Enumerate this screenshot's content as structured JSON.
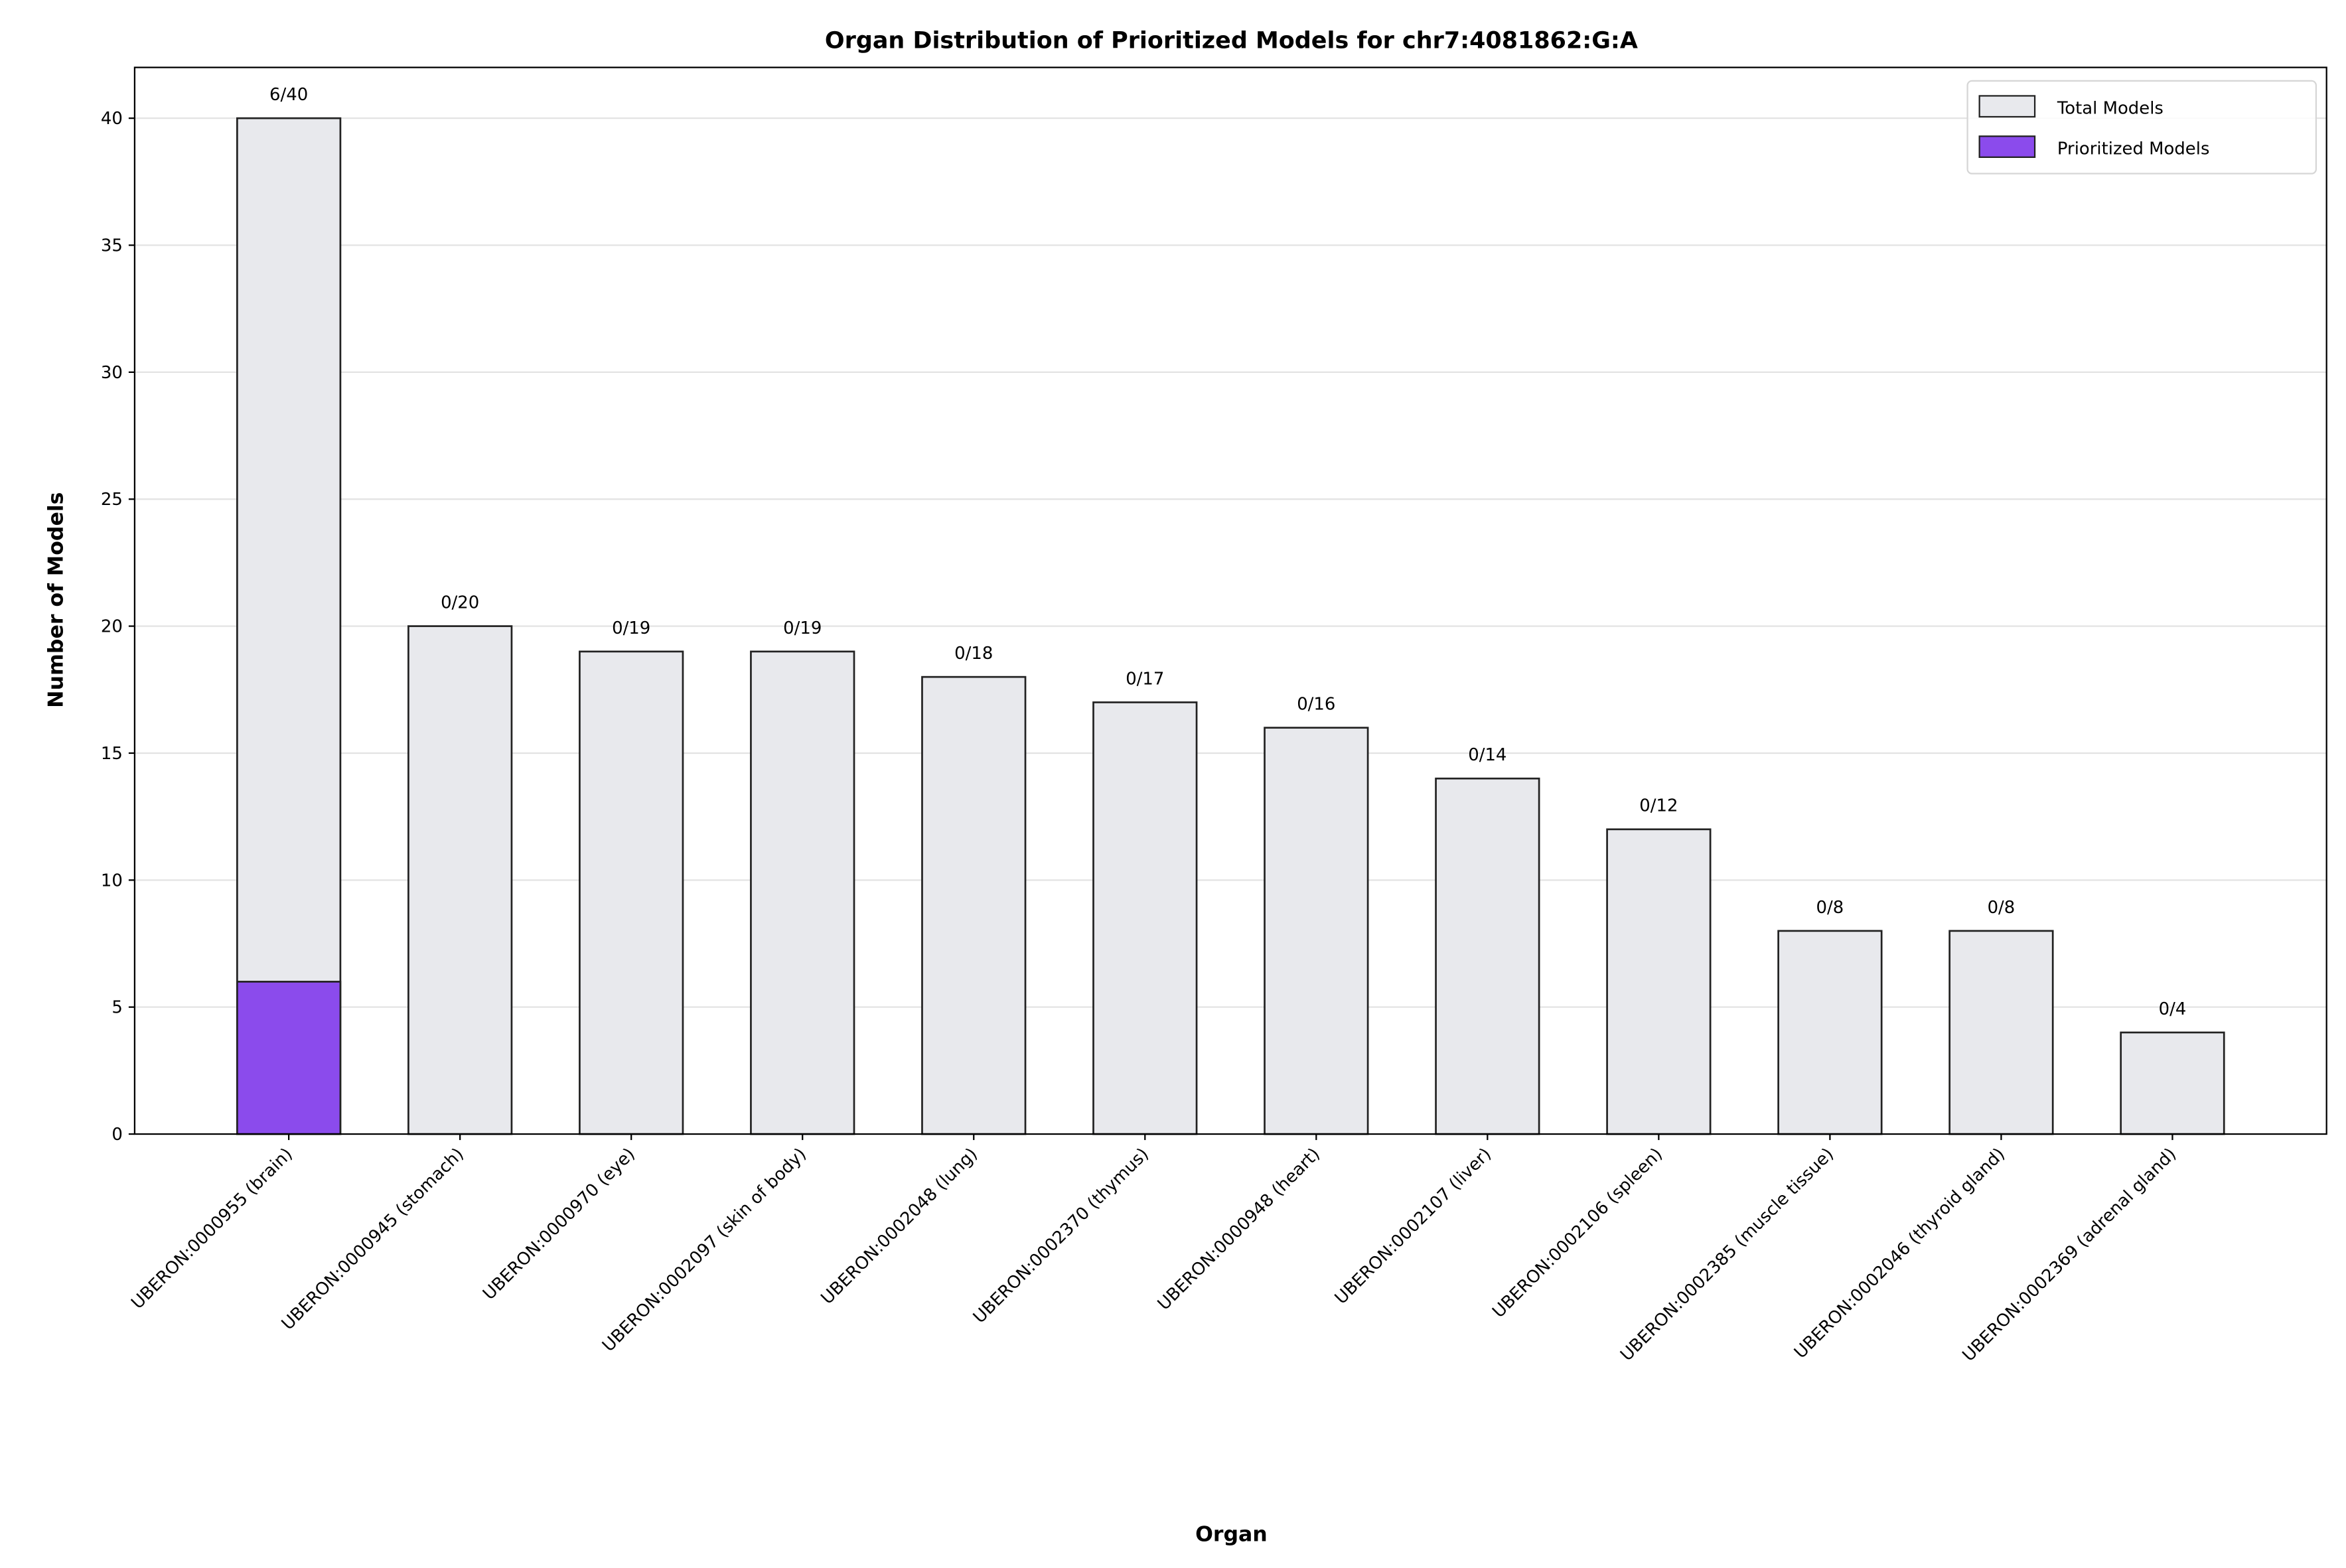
{
  "chart_data": {
    "type": "bar",
    "title": "Organ Distribution of Prioritized Models for chr7:4081862:G:A",
    "xlabel": "Organ",
    "ylabel": "Number of Models",
    "ylim": [
      0,
      42
    ],
    "yticks": [
      0,
      5,
      10,
      15,
      20,
      25,
      30,
      35,
      40
    ],
    "grid": "horizontal",
    "legend_position": "top-right",
    "categories": [
      "UBERON:0000955 (brain)",
      "UBERON:0000945 (stomach)",
      "UBERON:0000970 (eye)",
      "UBERON:0002097 (skin of body)",
      "UBERON:0002048 (lung)",
      "UBERON:0002370 (thymus)",
      "UBERON:0000948 (heart)",
      "UBERON:0002107 (liver)",
      "UBERON:0002106 (spleen)",
      "UBERON:0002385 (muscle tissue)",
      "UBERON:0002046 (thyroid gland)",
      "UBERON:0002369 (adrenal gland)"
    ],
    "series": [
      {
        "name": "Total Models",
        "color": "#e8e9ed",
        "values": [
          40,
          20,
          19,
          19,
          18,
          17,
          16,
          14,
          12,
          8,
          8,
          4
        ]
      },
      {
        "name": "Prioritized Models",
        "color": "#8b4bec",
        "values": [
          6,
          0,
          0,
          0,
          0,
          0,
          0,
          0,
          0,
          0,
          0,
          0
        ]
      }
    ],
    "data_labels": [
      "6/40",
      "0/20",
      "0/19",
      "0/19",
      "0/18",
      "0/17",
      "0/16",
      "0/14",
      "0/12",
      "0/8",
      "0/8",
      "0/4"
    ]
  }
}
